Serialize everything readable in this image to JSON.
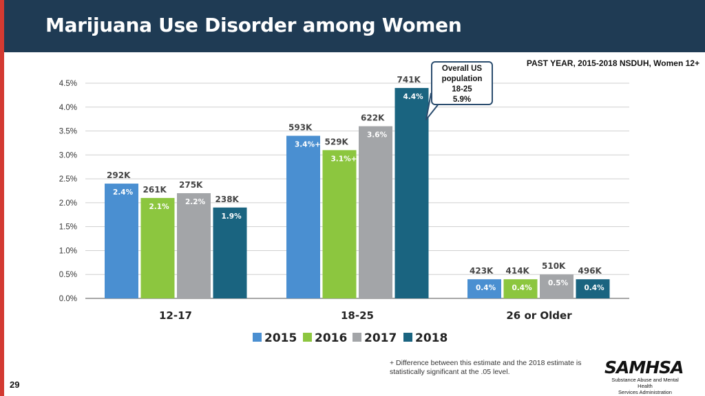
{
  "header": {
    "title": "Marijuana Use Disorder among Women"
  },
  "source_note": "PAST YEAR, 2015-2018 NSDUH, Women 12+",
  "callout": {
    "lines": [
      "Overall US",
      "population",
      "18-25",
      "5.9%"
    ]
  },
  "footnote": "+ Difference between this estimate and the 2018 estimate is statistically significant at the .05 level.",
  "page_number": "29",
  "logo": {
    "name": "SAMHSA",
    "subtitle_line1": "Substance Abuse and Mental Health",
    "subtitle_line2": "Services Administration"
  },
  "colors": {
    "2015": "#4a8fd1",
    "2016": "#8cc63f",
    "2017": "#a3a5a8",
    "2018": "#1a6480"
  },
  "chart_data": {
    "type": "bar",
    "title": "Marijuana Use Disorder among Women",
    "categories": [
      "12-17",
      "18-25",
      "26 or Older"
    ],
    "yticks": [
      "0.0%",
      "0.5%",
      "1.0%",
      "1.5%",
      "2.0%",
      "2.5%",
      "3.0%",
      "3.5%",
      "4.0%",
      "4.5%"
    ],
    "ylim": [
      0,
      4.5
    ],
    "grid": true,
    "legend_position": "bottom",
    "series": [
      {
        "name": "2015",
        "values": [
          2.4,
          3.4,
          0.4
        ],
        "labels": [
          "2.4%",
          "3.4%+",
          "0.4%"
        ],
        "counts": [
          "292K",
          "593K",
          "423K"
        ]
      },
      {
        "name": "2016",
        "values": [
          2.1,
          3.1,
          0.4
        ],
        "labels": [
          "2.1%",
          "3.1%+",
          "0.4%"
        ],
        "counts": [
          "261K",
          "529K",
          "414K"
        ]
      },
      {
        "name": "2017",
        "values": [
          2.2,
          3.6,
          0.5
        ],
        "labels": [
          "2.2%",
          "3.6%",
          "0.5%"
        ],
        "counts": [
          "275K",
          "622K",
          "510K"
        ]
      },
      {
        "name": "2018",
        "values": [
          1.9,
          4.4,
          0.4
        ],
        "labels": [
          "1.9%",
          "4.4%",
          "0.4%"
        ],
        "counts": [
          "238K",
          "741K",
          "496K"
        ]
      }
    ]
  }
}
